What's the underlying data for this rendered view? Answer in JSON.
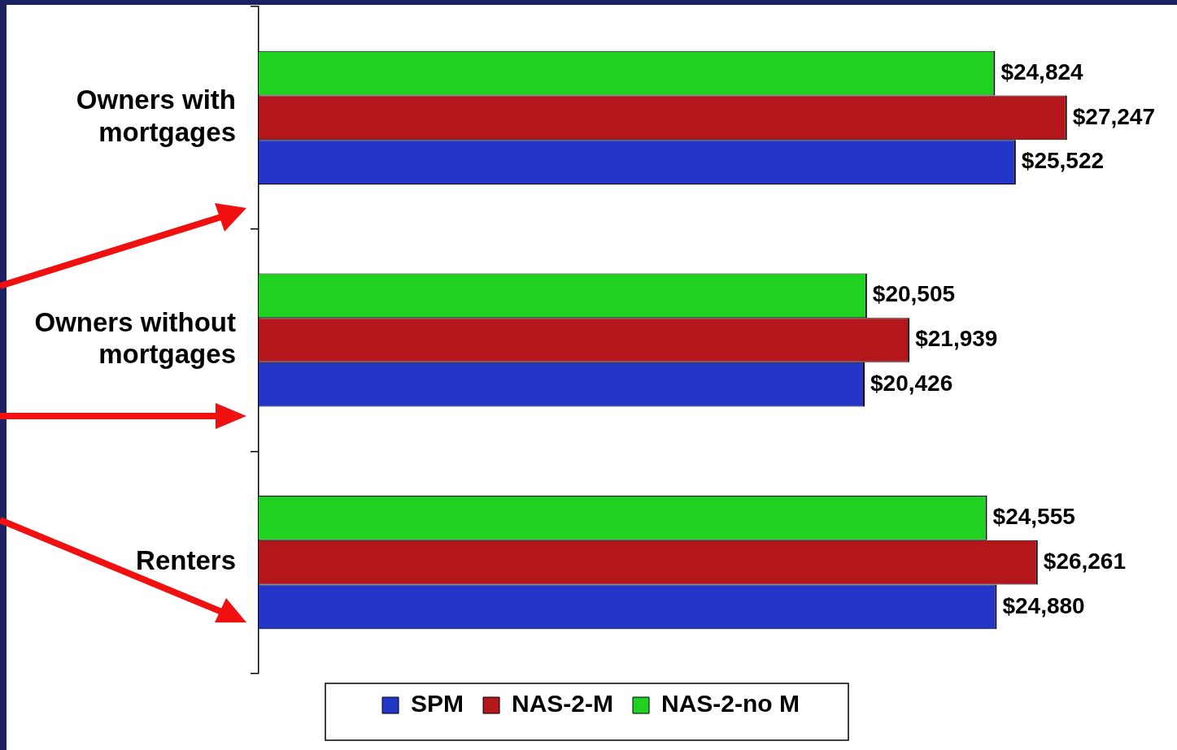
{
  "chart_data": {
    "type": "bar",
    "orientation": "horizontal",
    "categories": [
      "Owners with mortgages",
      "Owners without mortgages",
      "Renters"
    ],
    "series": [
      {
        "name": "SPM",
        "color": "#2336c8",
        "values": [
          25522,
          20426,
          24880
        ],
        "value_labels": [
          "$25,522",
          "$20,426",
          "$24,880"
        ]
      },
      {
        "name": "NAS-2-M",
        "color": "#b3161b",
        "values": [
          27247,
          21939,
          26261
        ],
        "value_labels": [
          "$27,247",
          "$21,939",
          "$26,261"
        ]
      },
      {
        "name": "NAS-2-no M",
        "color": "#1fd21f",
        "values": [
          24824,
          20505,
          24555
        ],
        "value_labels": [
          "$24,824",
          "$20,505",
          "$24,555"
        ]
      }
    ],
    "xlim": [
      0,
      30900
    ],
    "legend": "bottom",
    "tick_labels": "y"
  }
}
